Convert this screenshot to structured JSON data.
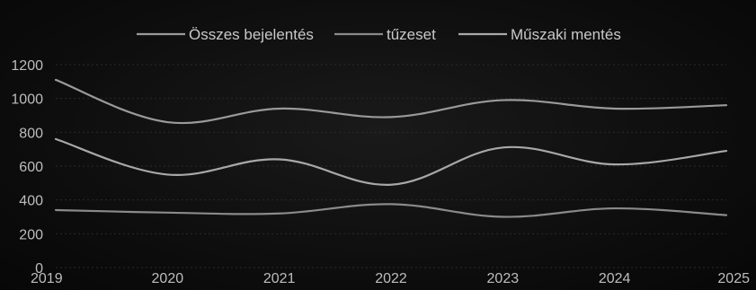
{
  "chart_data": {
    "type": "line",
    "title": "",
    "xlabel": "",
    "ylabel": "",
    "x": [
      "2019",
      "2020",
      "2021",
      "2022",
      "2023",
      "2024",
      "2025"
    ],
    "y_ticks": [
      "0",
      "200",
      "400",
      "600",
      "800",
      "1000",
      "1200"
    ],
    "ylim": [
      0,
      1200
    ],
    "grid": true,
    "legend_position": "top",
    "series": [
      {
        "name": "Összes bejelentés",
        "values": [
          1110,
          860,
          940,
          890,
          990,
          940,
          960
        ],
        "color": "#9a9a9a"
      },
      {
        "name": "tűzeset",
        "values": [
          340,
          325,
          320,
          375,
          300,
          350,
          310
        ],
        "color": "#8a8a8a"
      },
      {
        "name": "Műszaki mentés",
        "values": [
          760,
          550,
          640,
          490,
          710,
          610,
          690
        ],
        "color": "#a8a8a8"
      }
    ]
  }
}
